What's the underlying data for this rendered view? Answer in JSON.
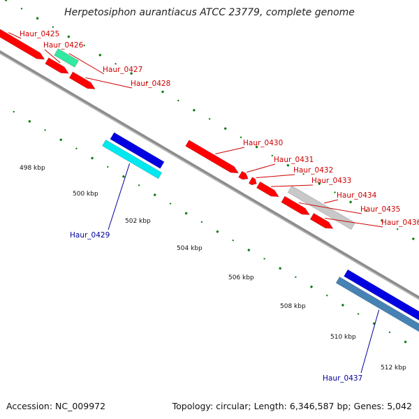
{
  "title": "Herpetosiphon aurantiacus ATCC 23779, complete genome",
  "footer": {
    "accession": "Accession: NC_009972",
    "summary": "Topology: circular; Length: 6,346,587 bp; Genes: 5,042"
  },
  "ticks": [
    {
      "label": "498 kbp"
    },
    {
      "label": "500 kbp"
    },
    {
      "label": "502 kbp"
    },
    {
      "label": "504 kbp"
    },
    {
      "label": "506 kbp"
    },
    {
      "label": "508 kbp"
    },
    {
      "label": "510 kbp"
    },
    {
      "label": "512 kbp"
    }
  ],
  "genes": [
    {
      "name": "Haur_0425",
      "strand": "forward",
      "color": "#ff0000"
    },
    {
      "name": "Haur_0426",
      "strand": "forward",
      "color": "#ff0000"
    },
    {
      "name": "Haur_0427",
      "strand": "forward",
      "color": "#33e8a0"
    },
    {
      "name": "Haur_0428",
      "strand": "forward",
      "color": "#ff0000"
    },
    {
      "name": "Haur_0429",
      "strand": "reverse",
      "color": "#0000e0"
    },
    {
      "name": "Haur_0430",
      "strand": "forward",
      "color": "#ff0000"
    },
    {
      "name": "Haur_0431",
      "strand": "forward",
      "color": "#ff0000"
    },
    {
      "name": "Haur_0432",
      "strand": "forward",
      "color": "#ff0000"
    },
    {
      "name": "Haur_0433",
      "strand": "forward",
      "color": "#ff0000"
    },
    {
      "name": "Haur_0434",
      "strand": "forward",
      "color": "#c8c8c8"
    },
    {
      "name": "Haur_0435",
      "strand": "forward",
      "color": "#ff0000"
    },
    {
      "name": "Haur_0436",
      "strand": "forward",
      "color": "#ff0000"
    },
    {
      "name": "Haur_0437",
      "strand": "reverse",
      "color": "#0000e0"
    }
  ],
  "colors": {
    "forward_label": "#cc0000",
    "reverse_label": "#000099",
    "tick_dot": "#007700",
    "backbone": "#8c8c8c"
  }
}
